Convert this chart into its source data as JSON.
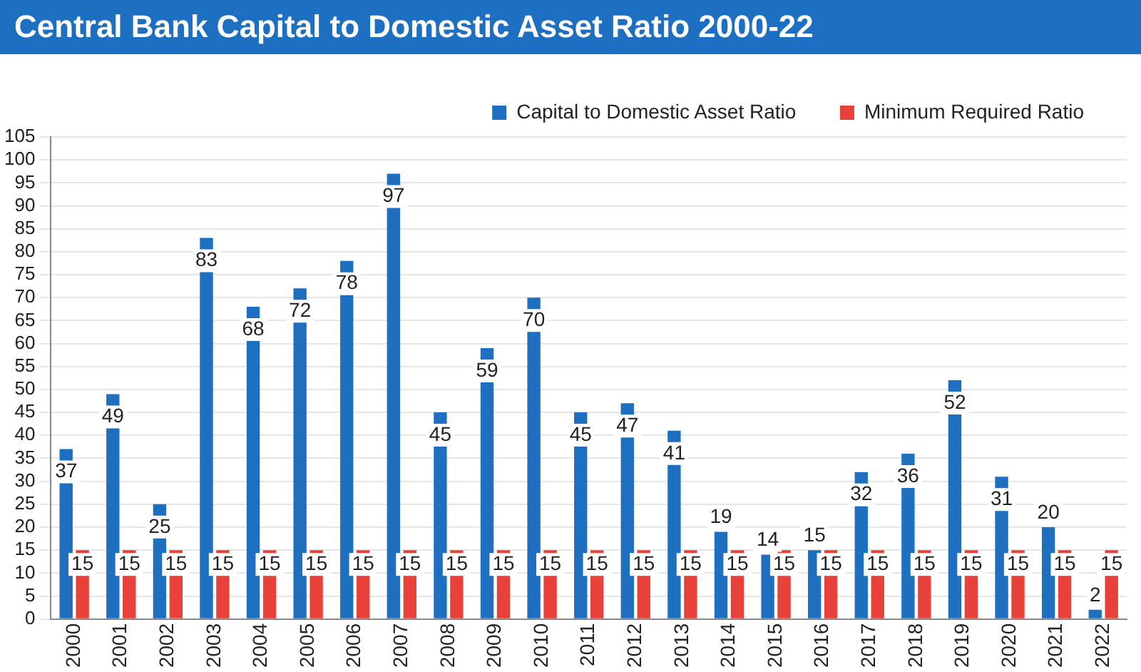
{
  "chart_data": {
    "type": "bar",
    "title": "Central Bank Capital to Domestic Asset Ratio 2000-22",
    "categories": [
      "2000",
      "2001",
      "2002",
      "2003",
      "2004",
      "2005",
      "2006",
      "2007",
      "2008",
      "2009",
      "2010",
      "2011",
      "2012",
      "2013",
      "2014",
      "2015",
      "2016",
      "2017",
      "2018",
      "2019",
      "2020",
      "2021",
      "2022"
    ],
    "series": [
      {
        "name": "Capital to Domestic Asset Ratio",
        "color": "#1f6fc0",
        "values": [
          37,
          49,
          25,
          83,
          68,
          72,
          78,
          97,
          45,
          59,
          70,
          45,
          47,
          41,
          19,
          14,
          15,
          32,
          36,
          52,
          31,
          20,
          2
        ]
      },
      {
        "name": "Minimum Required Ratio",
        "color": "#e8413a",
        "values": [
          15,
          15,
          15,
          15,
          15,
          15,
          15,
          15,
          15,
          15,
          15,
          15,
          15,
          15,
          15,
          15,
          15,
          15,
          15,
          15,
          15,
          15,
          15
        ]
      }
    ],
    "ylim": [
      0,
      105
    ],
    "yticks": [
      0,
      5,
      10,
      15,
      20,
      25,
      30,
      35,
      40,
      45,
      50,
      55,
      60,
      65,
      70,
      75,
      80,
      85,
      90,
      95,
      100,
      105
    ],
    "grid": "y",
    "legend": "top right",
    "data_labels": true
  }
}
